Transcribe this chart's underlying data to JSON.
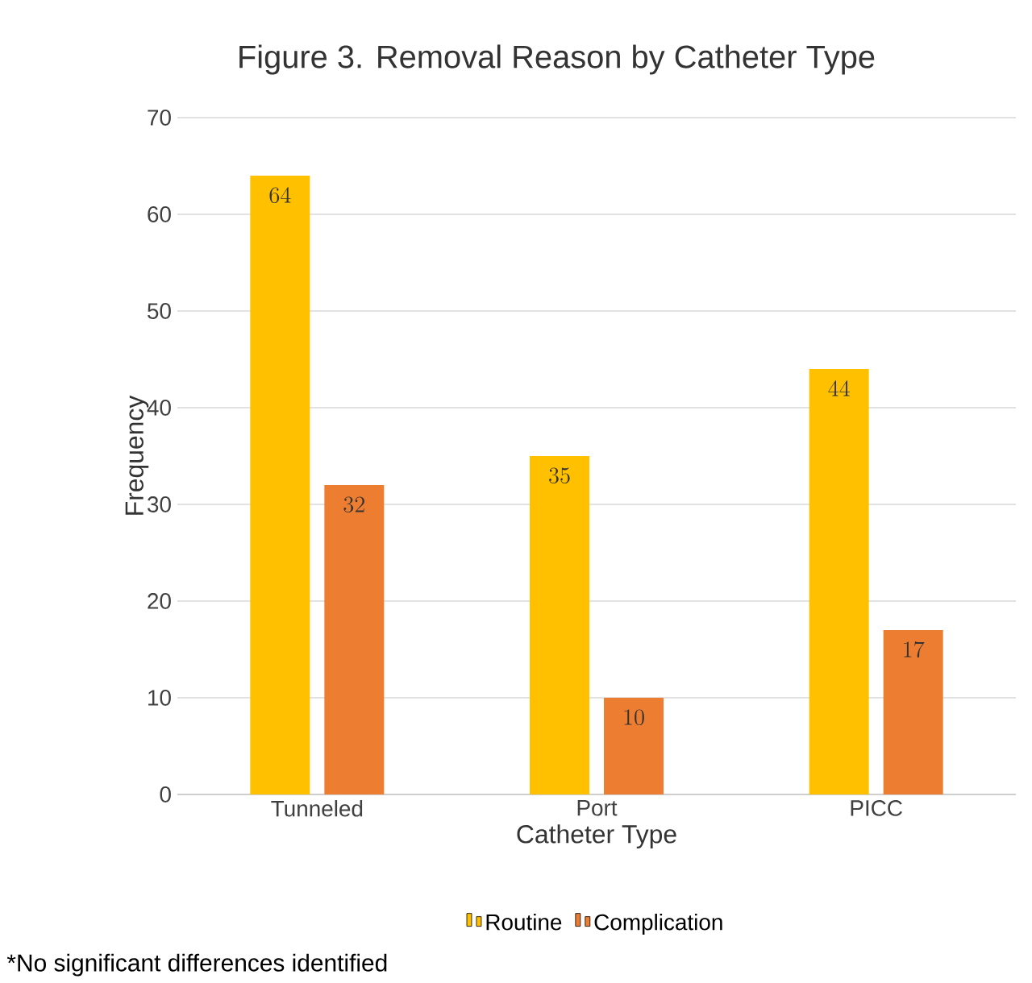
{
  "chart_data": {
    "type": "bar",
    "title": "Figure 3. Removal Reason by Catheter Type",
    "xlabel": "Catheter Type",
    "ylabel": "Frequency",
    "categories": [
      "Tunneled",
      "Port",
      "PICC"
    ],
    "series": [
      {
        "name": "Routine",
        "color": "#ffc000",
        "values": [
          64,
          35,
          44
        ]
      },
      {
        "name": "Complication",
        "color": "#ed7d31",
        "values": [
          32,
          10,
          17
        ]
      }
    ],
    "ylim": [
      0,
      70
    ],
    "yticks": [
      0,
      10,
      20,
      30,
      40,
      50,
      60,
      70
    ],
    "grid": "y",
    "legend": "bottom",
    "data_labels": true,
    "annotations": [
      "*No significant differences identified"
    ]
  }
}
